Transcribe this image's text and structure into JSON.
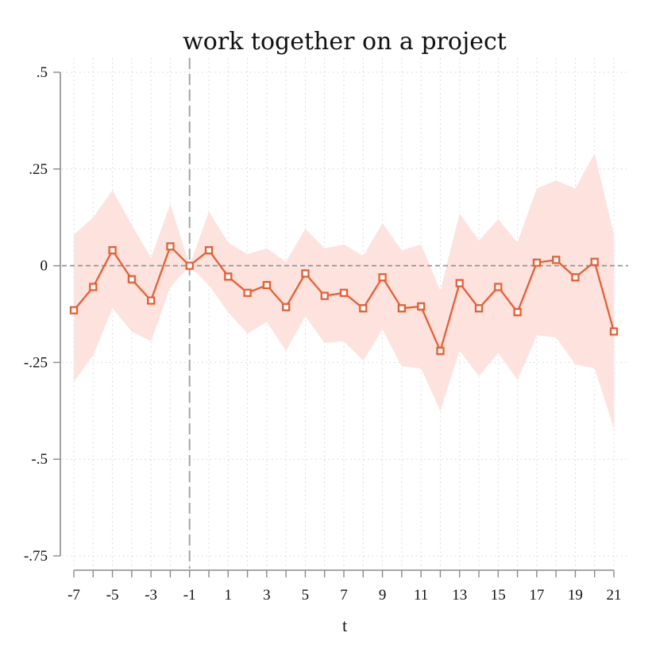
{
  "chart_data": {
    "type": "line",
    "title": "work together on a project",
    "xlabel": "t",
    "ylabel": "",
    "xlim": [
      -7,
      21
    ],
    "ylim": [
      -0.75,
      0.5
    ],
    "x_tick_values": [
      -7,
      -5,
      -3,
      -1,
      1,
      3,
      5,
      7,
      9,
      11,
      13,
      15,
      17,
      19,
      21
    ],
    "x_tick_labels": [
      "-7",
      "-5",
      "-3",
      "-1",
      "1",
      "3",
      "5",
      "7",
      "9",
      "11",
      "13",
      "15",
      "17",
      "19",
      "21"
    ],
    "y_tick_values": [
      0.5,
      0.25,
      0,
      -0.25,
      -0.5,
      -0.75
    ],
    "y_tick_labels": [
      ".5",
      ".25",
      "0",
      "-.25",
      "-.5",
      "-.75"
    ],
    "x_minor_ticks": [
      -6,
      -4,
      -2,
      0,
      2,
      4,
      6,
      8,
      10,
      12,
      14,
      16,
      18,
      20
    ],
    "grid": true,
    "reference_line_x": -1,
    "zero_line_y": 0,
    "x": [
      -7,
      -6,
      -5,
      -4,
      -3,
      -2,
      -1,
      0,
      1,
      2,
      3,
      4,
      5,
      6,
      7,
      8,
      9,
      10,
      11,
      12,
      13,
      14,
      15,
      16,
      17,
      18,
      19,
      20,
      21
    ],
    "series": [
      {
        "values": [
          -0.115,
          -0.055,
          0.04,
          -0.035,
          -0.09,
          0.05,
          0.0,
          0.04,
          -0.028,
          -0.07,
          -0.05,
          -0.107,
          -0.02,
          -0.078,
          -0.07,
          -0.11,
          -0.03,
          -0.11,
          -0.105,
          -0.22,
          -0.045,
          -0.11,
          -0.055,
          -0.12,
          0.008,
          0.015,
          -0.03,
          0.01,
          -0.17
        ],
        "ci_upper": [
          0.08,
          0.125,
          0.195,
          0.105,
          0.02,
          0.16,
          0.0,
          0.14,
          0.06,
          0.03,
          0.045,
          0.01,
          0.095,
          0.045,
          0.055,
          0.025,
          0.11,
          0.04,
          0.055,
          -0.065,
          0.135,
          0.065,
          0.12,
          0.06,
          0.2,
          0.22,
          0.2,
          0.29,
          0.08
        ],
        "ci_lower": [
          -0.3,
          -0.23,
          -0.11,
          -0.17,
          -0.195,
          -0.055,
          0.0,
          -0.05,
          -0.12,
          -0.175,
          -0.145,
          -0.22,
          -0.13,
          -0.2,
          -0.195,
          -0.245,
          -0.165,
          -0.26,
          -0.265,
          -0.375,
          -0.22,
          -0.285,
          -0.225,
          -0.295,
          -0.18,
          -0.185,
          -0.255,
          -0.265,
          -0.42
        ]
      }
    ],
    "colors": {
      "line": "#f4582a",
      "ci_fill": "#fde2dd",
      "axis": "#8a8a8a"
    },
    "marker": "hollow-square"
  }
}
